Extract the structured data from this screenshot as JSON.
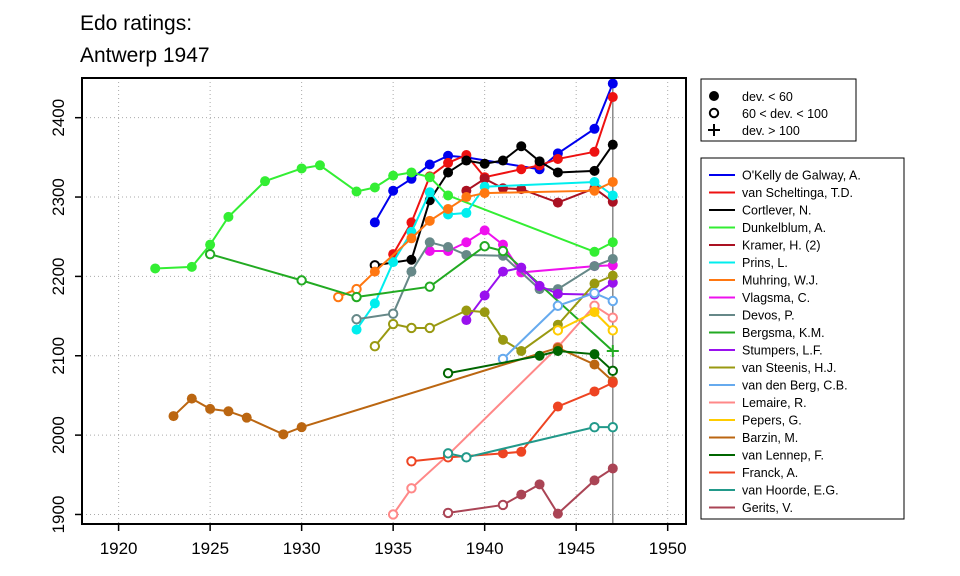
{
  "chart_data": {
    "type": "line",
    "title_lines": [
      "Edo ratings:",
      "Antwerp 1947"
    ],
    "xlabel": "",
    "ylabel": "",
    "xlim": [
      1918,
      1951
    ],
    "ylim": [
      1888,
      2450
    ],
    "x_ticks": [
      1920,
      1925,
      1930,
      1935,
      1940,
      1945,
      1950
    ],
    "y_ticks": [
      1900,
      2000,
      2100,
      2200,
      2300,
      2400
    ],
    "grid": true,
    "reference_line_x": 1947,
    "marker_legend": [
      {
        "label": "dev. < 60",
        "marker": "filled-circle"
      },
      {
        "label": "60 < dev. < 100",
        "marker": "open-circle"
      },
      {
        "label": "dev. > 100",
        "marker": "plus"
      }
    ],
    "series": [
      {
        "name": "O'Kelly de Galway, A.",
        "color": "#0000ee",
        "points": [
          {
            "x": 1934,
            "y": 2268,
            "m": "o"
          },
          {
            "x": 1935,
            "y": 2308,
            "m": "o"
          },
          {
            "x": 1936,
            "y": 2323,
            "m": "o"
          },
          {
            "x": 1937,
            "y": 2341,
            "m": "o"
          },
          {
            "x": 1938,
            "y": 2352,
            "m": "o"
          },
          {
            "x": 1939,
            "y": 2350,
            "m": "o"
          },
          {
            "x": 1943,
            "y": 2335,
            "m": "o"
          },
          {
            "x": 1944,
            "y": 2355,
            "m": "o"
          },
          {
            "x": 1946,
            "y": 2386,
            "m": "o"
          },
          {
            "x": 1947,
            "y": 2443,
            "m": "o"
          }
        ]
      },
      {
        "name": "van Scheltinga, T.D.",
        "color": "#ee1111",
        "points": [
          {
            "x": 1935,
            "y": 2228,
            "m": "o"
          },
          {
            "x": 1936,
            "y": 2268,
            "m": "o"
          },
          {
            "x": 1937,
            "y": 2326,
            "m": "o"
          },
          {
            "x": 1938,
            "y": 2343,
            "m": "o"
          },
          {
            "x": 1939,
            "y": 2353,
            "m": "o"
          },
          {
            "x": 1940,
            "y": 2325,
            "m": "o"
          },
          {
            "x": 1942,
            "y": 2335,
            "m": "o"
          },
          {
            "x": 1943,
            "y": 2340,
            "m": "o"
          },
          {
            "x": 1944,
            "y": 2348,
            "m": "o"
          },
          {
            "x": 1946,
            "y": 2357,
            "m": "o"
          },
          {
            "x": 1947,
            "y": 2426,
            "m": "o"
          }
        ]
      },
      {
        "name": "Cortlever, N.",
        "color": "#000000",
        "points": [
          {
            "x": 1934,
            "y": 2214,
            "m": "c"
          },
          {
            "x": 1936,
            "y": 2221,
            "m": "o"
          },
          {
            "x": 1937,
            "y": 2296,
            "m": "o"
          },
          {
            "x": 1938,
            "y": 2331,
            "m": "o"
          },
          {
            "x": 1939,
            "y": 2346,
            "m": "o"
          },
          {
            "x": 1940,
            "y": 2342,
            "m": "o"
          },
          {
            "x": 1941,
            "y": 2346,
            "m": "o"
          },
          {
            "x": 1942,
            "y": 2364,
            "m": "o"
          },
          {
            "x": 1943,
            "y": 2345,
            "m": "o"
          },
          {
            "x": 1944,
            "y": 2331,
            "m": "o"
          },
          {
            "x": 1946,
            "y": 2333,
            "m": "o"
          },
          {
            "x": 1947,
            "y": 2366,
            "m": "o"
          }
        ]
      },
      {
        "name": "Dunkelblum, A.",
        "color": "#33ee33",
        "points": [
          {
            "x": 1922,
            "y": 2210,
            "m": "o"
          },
          {
            "x": 1924,
            "y": 2212,
            "m": "o"
          },
          {
            "x": 1925,
            "y": 2240,
            "m": "o"
          },
          {
            "x": 1926,
            "y": 2275,
            "m": "o"
          },
          {
            "x": 1928,
            "y": 2320,
            "m": "o"
          },
          {
            "x": 1930,
            "y": 2336,
            "m": "o"
          },
          {
            "x": 1931,
            "y": 2340,
            "m": "o"
          },
          {
            "x": 1933,
            "y": 2307,
            "m": "o"
          },
          {
            "x": 1934,
            "y": 2312,
            "m": "o"
          },
          {
            "x": 1935,
            "y": 2327,
            "m": "o"
          },
          {
            "x": 1936,
            "y": 2331,
            "m": "o"
          },
          {
            "x": 1937,
            "y": 2325,
            "m": "o"
          },
          {
            "x": 1938,
            "y": 2302,
            "m": "o"
          },
          {
            "x": 1946,
            "y": 2231,
            "m": "o"
          },
          {
            "x": 1947,
            "y": 2243,
            "m": "o"
          }
        ]
      },
      {
        "name": "Kramer, H. (2)",
        "color": "#aa1122",
        "points": [
          {
            "x": 1939,
            "y": 2308,
            "m": "o"
          },
          {
            "x": 1940,
            "y": 2323,
            "m": "o"
          },
          {
            "x": 1941,
            "y": 2311,
            "m": "o"
          },
          {
            "x": 1942,
            "y": 2310,
            "m": "o"
          },
          {
            "x": 1944,
            "y": 2293,
            "m": "o"
          },
          {
            "x": 1946,
            "y": 2311,
            "m": "o"
          },
          {
            "x": 1947,
            "y": 2294,
            "m": "o"
          }
        ]
      },
      {
        "name": "Prins, L.",
        "color": "#00eeee",
        "points": [
          {
            "x": 1933,
            "y": 2133,
            "m": "o"
          },
          {
            "x": 1934,
            "y": 2166,
            "m": "o"
          },
          {
            "x": 1935,
            "y": 2218,
            "m": "o"
          },
          {
            "x": 1936,
            "y": 2256,
            "m": "o"
          },
          {
            "x": 1937,
            "y": 2306,
            "m": "o"
          },
          {
            "x": 1938,
            "y": 2278,
            "m": "o"
          },
          {
            "x": 1939,
            "y": 2280,
            "m": "o"
          },
          {
            "x": 1940,
            "y": 2313,
            "m": "o"
          },
          {
            "x": 1946,
            "y": 2319,
            "m": "o"
          },
          {
            "x": 1947,
            "y": 2302,
            "m": "o"
          }
        ]
      },
      {
        "name": "Muhring, W.J.",
        "color": "#ff7711",
        "points": [
          {
            "x": 1932,
            "y": 2174,
            "m": "c"
          },
          {
            "x": 1933,
            "y": 2184,
            "m": "c"
          },
          {
            "x": 1934,
            "y": 2206,
            "m": "o"
          },
          {
            "x": 1936,
            "y": 2248,
            "m": "o"
          },
          {
            "x": 1937,
            "y": 2270,
            "m": "o"
          },
          {
            "x": 1938,
            "y": 2285,
            "m": "o"
          },
          {
            "x": 1939,
            "y": 2300,
            "m": "o"
          },
          {
            "x": 1940,
            "y": 2305,
            "m": "o"
          },
          {
            "x": 1946,
            "y": 2308,
            "m": "o"
          },
          {
            "x": 1947,
            "y": 2319,
            "m": "o"
          }
        ]
      },
      {
        "name": "Vlagsma, C.",
        "color": "#ee11ee",
        "points": [
          {
            "x": 1937,
            "y": 2232,
            "m": "o"
          },
          {
            "x": 1938,
            "y": 2232,
            "m": "o"
          },
          {
            "x": 1939,
            "y": 2243,
            "m": "o"
          },
          {
            "x": 1940,
            "y": 2258,
            "m": "o"
          },
          {
            "x": 1941,
            "y": 2240,
            "m": "o"
          },
          {
            "x": 1942,
            "y": 2205,
            "m": "o"
          },
          {
            "x": 1946,
            "y": 2213,
            "m": "o"
          },
          {
            "x": 1947,
            "y": 2214,
            "m": "o"
          }
        ]
      },
      {
        "name": "Devos, P.",
        "color": "#668888",
        "points": [
          {
            "x": 1933,
            "y": 2146,
            "m": "c"
          },
          {
            "x": 1935,
            "y": 2153,
            "m": "c"
          },
          {
            "x": 1936,
            "y": 2206,
            "m": "o"
          },
          {
            "x": 1937,
            "y": 2243,
            "m": "o"
          },
          {
            "x": 1938,
            "y": 2237,
            "m": "o"
          },
          {
            "x": 1939,
            "y": 2227,
            "m": "o"
          },
          {
            "x": 1941,
            "y": 2226,
            "m": "o"
          },
          {
            "x": 1943,
            "y": 2184,
            "m": "o"
          },
          {
            "x": 1944,
            "y": 2184,
            "m": "o"
          },
          {
            "x": 1946,
            "y": 2213,
            "m": "o"
          },
          {
            "x": 1947,
            "y": 2222,
            "m": "o"
          }
        ]
      },
      {
        "name": "Bergsma, K.M.",
        "color": "#22aa22",
        "points": [
          {
            "x": 1925,
            "y": 2228,
            "m": "c"
          },
          {
            "x": 1930,
            "y": 2195,
            "m": "c"
          },
          {
            "x": 1933,
            "y": 2174,
            "m": "c"
          },
          {
            "x": 1937,
            "y": 2187,
            "m": "c"
          },
          {
            "x": 1940,
            "y": 2238,
            "m": "c"
          },
          {
            "x": 1941,
            "y": 2232,
            "m": "c"
          },
          {
            "x": 1947,
            "y": 2106,
            "m": "p"
          }
        ]
      },
      {
        "name": "Stumpers, L.F.",
        "color": "#9911ee",
        "points": [
          {
            "x": 1939,
            "y": 2145,
            "m": "o"
          },
          {
            "x": 1940,
            "y": 2176,
            "m": "o"
          },
          {
            "x": 1941,
            "y": 2206,
            "m": "o"
          },
          {
            "x": 1942,
            "y": 2211,
            "m": "o"
          },
          {
            "x": 1943,
            "y": 2188,
            "m": "o"
          },
          {
            "x": 1944,
            "y": 2178,
            "m": "o"
          },
          {
            "x": 1946,
            "y": 2177,
            "m": "o"
          },
          {
            "x": 1947,
            "y": 2192,
            "m": "o"
          }
        ]
      },
      {
        "name": "van Steenis, H.J.",
        "color": "#999911",
        "points": [
          {
            "x": 1934,
            "y": 2112,
            "m": "c"
          },
          {
            "x": 1935,
            "y": 2140,
            "m": "c"
          },
          {
            "x": 1936,
            "y": 2135,
            "m": "c"
          },
          {
            "x": 1937,
            "y": 2135,
            "m": "c"
          },
          {
            "x": 1939,
            "y": 2157,
            "m": "o"
          },
          {
            "x": 1940,
            "y": 2155,
            "m": "o"
          },
          {
            "x": 1941,
            "y": 2120,
            "m": "o"
          },
          {
            "x": 1942,
            "y": 2106,
            "m": "o"
          },
          {
            "x": 1944,
            "y": 2139,
            "m": "o"
          },
          {
            "x": 1946,
            "y": 2191,
            "m": "o"
          },
          {
            "x": 1947,
            "y": 2201,
            "m": "o"
          }
        ]
      },
      {
        "name": "van den Berg, C.B.",
        "color": "#66aaee",
        "points": [
          {
            "x": 1941,
            "y": 2096,
            "m": "c"
          },
          {
            "x": 1944,
            "y": 2163,
            "m": "c"
          },
          {
            "x": 1946,
            "y": 2179,
            "m": "c"
          },
          {
            "x": 1947,
            "y": 2169,
            "m": "c"
          }
        ]
      },
      {
        "name": "Lemaire, R.",
        "color": "#ff8888",
        "points": [
          {
            "x": 1935,
            "y": 1900,
            "m": "c"
          },
          {
            "x": 1936,
            "y": 1933,
            "m": "c"
          },
          {
            "x": 1938,
            "y": 1975,
            "m": "c"
          },
          {
            "x": 1944,
            "y": 2111,
            "m": "c"
          },
          {
            "x": 1946,
            "y": 2163,
            "m": "c"
          },
          {
            "x": 1947,
            "y": 2148,
            "m": "c"
          }
        ]
      },
      {
        "name": "Pepers, G.",
        "color": "#ffcc00",
        "points": [
          {
            "x": 1944,
            "y": 2132,
            "m": "c"
          },
          {
            "x": 1946,
            "y": 2155,
            "m": "o"
          },
          {
            "x": 1947,
            "y": 2132,
            "m": "c"
          }
        ]
      },
      {
        "name": "Barzin, M.",
        "color": "#bb6611",
        "points": [
          {
            "x": 1923,
            "y": 2024,
            "m": "o"
          },
          {
            "x": 1924,
            "y": 2046,
            "m": "o"
          },
          {
            "x": 1925,
            "y": 2033,
            "m": "o"
          },
          {
            "x": 1926,
            "y": 2030,
            "m": "o"
          },
          {
            "x": 1927,
            "y": 2022,
            "m": "o"
          },
          {
            "x": 1929,
            "y": 2001,
            "m": "o"
          },
          {
            "x": 1930,
            "y": 2010,
            "m": "o"
          },
          {
            "x": 1944,
            "y": 2110,
            "m": "o"
          },
          {
            "x": 1946,
            "y": 2089,
            "m": "o"
          },
          {
            "x": 1947,
            "y": 2068,
            "m": "o"
          }
        ]
      },
      {
        "name": "van Lennep, F.",
        "color": "#006600",
        "points": [
          {
            "x": 1938,
            "y": 2078,
            "m": "c"
          },
          {
            "x": 1943,
            "y": 2100,
            "m": "o"
          },
          {
            "x": 1944,
            "y": 2106,
            "m": "o"
          },
          {
            "x": 1946,
            "y": 2102,
            "m": "o"
          },
          {
            "x": 1947,
            "y": 2081,
            "m": "c"
          }
        ]
      },
      {
        "name": "Franck, A.",
        "color": "#ee4422",
        "points": [
          {
            "x": 1936,
            "y": 1967,
            "m": "c"
          },
          {
            "x": 1938,
            "y": 1972,
            "m": "c"
          },
          {
            "x": 1941,
            "y": 1977,
            "m": "o"
          },
          {
            "x": 1942,
            "y": 1979,
            "m": "o"
          },
          {
            "x": 1944,
            "y": 2036,
            "m": "o"
          },
          {
            "x": 1946,
            "y": 2055,
            "m": "o"
          },
          {
            "x": 1947,
            "y": 2066,
            "m": "o"
          }
        ]
      },
      {
        "name": "van Hoorde, E.G.",
        "color": "#22998a",
        "points": [
          {
            "x": 1938,
            "y": 1977,
            "m": "c"
          },
          {
            "x": 1939,
            "y": 1972,
            "m": "c"
          },
          {
            "x": 1946,
            "y": 2010,
            "m": "c"
          },
          {
            "x": 1947,
            "y": 2010,
            "m": "c"
          }
        ]
      },
      {
        "name": "Gerits, V.",
        "color": "#aa4455",
        "points": [
          {
            "x": 1938,
            "y": 1902,
            "m": "c"
          },
          {
            "x": 1941,
            "y": 1912,
            "m": "c"
          },
          {
            "x": 1942,
            "y": 1925,
            "m": "o"
          },
          {
            "x": 1943,
            "y": 1938,
            "m": "o"
          },
          {
            "x": 1944,
            "y": 1901,
            "m": "o"
          },
          {
            "x": 1946,
            "y": 1943,
            "m": "o"
          },
          {
            "x": 1947,
            "y": 1958,
            "m": "o"
          }
        ]
      }
    ]
  }
}
